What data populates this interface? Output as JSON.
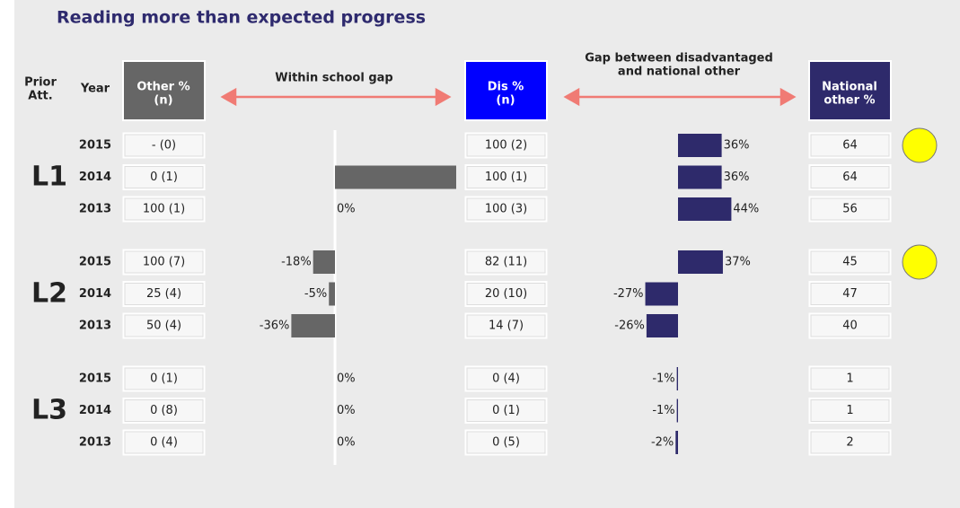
{
  "title": "Reading more than expected progress",
  "headers": {
    "prior": [
      "Prior",
      "Att."
    ],
    "year": "Year",
    "other": [
      "Other %",
      "(n)"
    ],
    "within": "Within school gap",
    "dis": [
      "Dis %",
      "(n)"
    ],
    "gap": [
      "Gap between disadvantaged",
      "and national other"
    ],
    "national": [
      "National",
      "other %"
    ]
  },
  "groups": [
    {
      "label": "L1",
      "rows": [
        {
          "year": "2015",
          "other": "- (0)",
          "dis": "100 (2)",
          "gap": 36,
          "gap_label": "36%",
          "national": 64,
          "indicator": true
        },
        {
          "year": "2014",
          "other": "0 (1)",
          "within": 100,
          "dis": "100 (1)",
          "gap": 36,
          "gap_label": "36%",
          "national": 64
        },
        {
          "year": "2013",
          "other": "100 (1)",
          "within": 0,
          "within_label": "0%",
          "dis": "100 (3)",
          "gap": 44,
          "gap_label": "44%",
          "national": 56
        }
      ]
    },
    {
      "label": "L2",
      "rows": [
        {
          "year": "2015",
          "other": "100 (7)",
          "within": -18,
          "within_label": "-18%",
          "dis": "82 (11)",
          "gap": 37,
          "gap_label": "37%",
          "national": 45,
          "indicator": true
        },
        {
          "year": "2014",
          "other": "25 (4)",
          "within": -5,
          "within_label": "-5%",
          "dis": "20 (10)",
          "gap": -27,
          "gap_label": "-27%",
          "national": 47
        },
        {
          "year": "2013",
          "other": "50 (4)",
          "within": -36,
          "within_label": "-36%",
          "dis": "14 (7)",
          "gap": -26,
          "gap_label": "-26%",
          "national": 40
        }
      ]
    },
    {
      "label": "L3",
      "rows": [
        {
          "year": "2015",
          "other": "0 (1)",
          "within": 0,
          "within_label": "0%",
          "dis": "0 (4)",
          "gap": -1,
          "gap_label": "-1%",
          "national": 1
        },
        {
          "year": "2014",
          "other": "0 (8)",
          "within": 0,
          "within_label": "0%",
          "dis": "0 (1)",
          "gap": -1,
          "gap_label": "-1%",
          "national": 1
        },
        {
          "year": "2013",
          "other": "0 (4)",
          "within": 0,
          "within_label": "0%",
          "dis": "0 (5)",
          "gap": -2,
          "gap_label": "-2%",
          "national": 2
        }
      ]
    }
  ]
}
